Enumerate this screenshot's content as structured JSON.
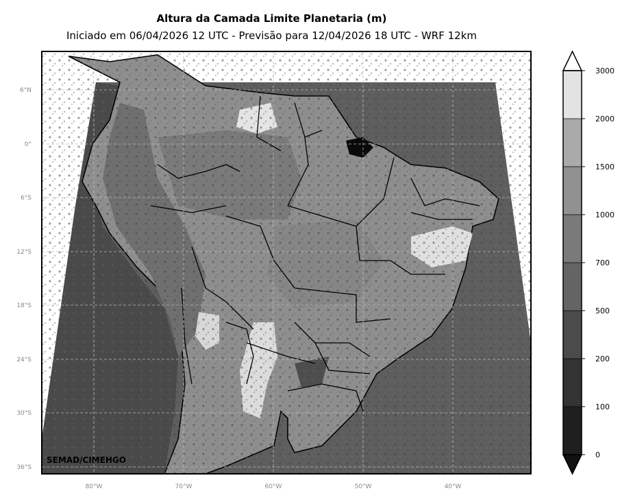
{
  "title": "Altura da Camada Limite Planetaria (m)",
  "subtitle": "Iniciado em 06/04/2026 12 UTC - Previsão para 12/04/2026 18 UTC - WRF 12km",
  "credit": "SEMAD/CIMEHGO",
  "lat_labels": [
    "6°N",
    "0°",
    "6°S",
    "12°S",
    "18°S",
    "24°S",
    "30°S",
    "36°S"
  ],
  "lon_labels": [
    "80°W",
    "70°W",
    "60°W",
    "50°W",
    "40°W"
  ],
  "colorbar": {
    "tick_labels": [
      "0",
      "100",
      "200",
      "500",
      "700",
      "1000",
      "1500",
      "2000",
      "3000"
    ],
    "levels": [
      0,
      100,
      200,
      500,
      700,
      1000,
      1500,
      2000,
      3000
    ],
    "colors": [
      "#1f1f1f",
      "#333333",
      "#4b4b4b",
      "#646464",
      "#7a7a7a",
      "#919191",
      "#aaaaaa",
      "#e3e3e3"
    ],
    "extend": "both"
  },
  "colors": {
    "ocean_fill": "#5e5e5e",
    "land_fill": "#8d8d8d",
    "grid": "#bbbbbb",
    "borders": "#000000"
  }
}
